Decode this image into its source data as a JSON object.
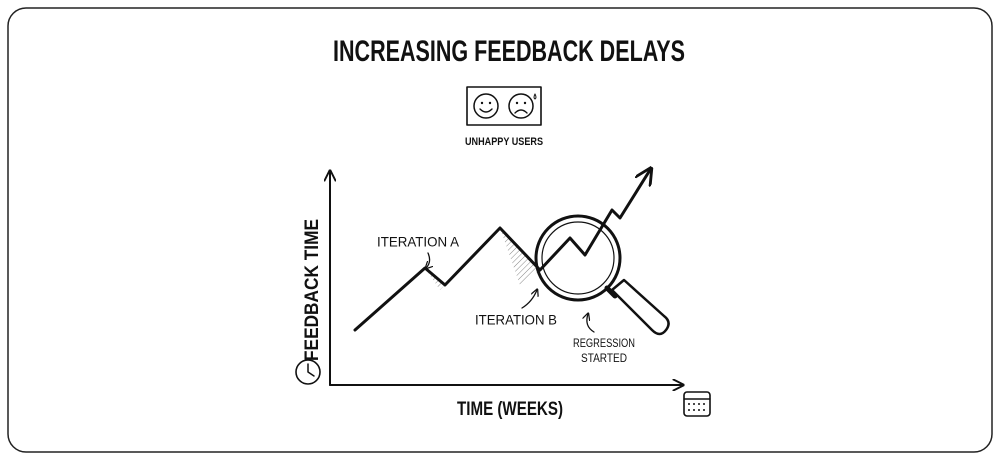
{
  "title": "INCREASING FEEDBACK DELAYS",
  "badge": {
    "label": "UNHAPPY USERS"
  },
  "axes": {
    "y_label": "FEEDBACK TIME",
    "x_label": "TIME (WEEKS)"
  },
  "annotations": [
    {
      "lines": [
        "ITERATION A"
      ]
    },
    {
      "lines": [
        "ITERATION B"
      ]
    },
    {
      "lines": [
        "REGRESSION",
        "STARTED"
      ]
    }
  ]
}
